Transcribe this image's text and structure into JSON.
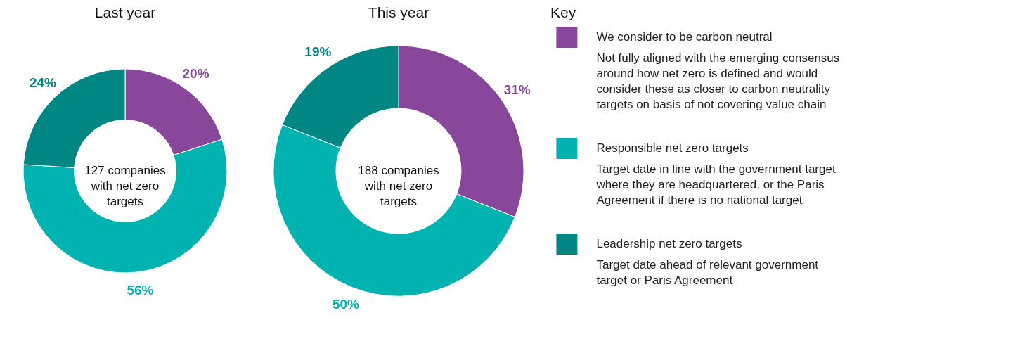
{
  "chart_data": [
    {
      "type": "donut",
      "title": "Last year",
      "categories": [
        "We consider to be carbon neutral",
        "Responsible net zero targets",
        "Leadership net zero targets"
      ],
      "values": [
        20,
        56,
        24
      ],
      "value_labels": [
        "20%",
        "56%",
        "24%"
      ],
      "colors": [
        "#88479b",
        "#00b3b0",
        "#008784"
      ],
      "annotations": [
        "127 companies with net zero targets",
        "Not fully aligned with the emerging consensus around how net zero is defined and would consider these as closer to carbon neutrality targets on basis of not covering value chain",
        "Target date in line with the government target where they are headquartered, or the Paris Agreement if there is no national target",
        "Target date ahead of relevant government target or Paris Agreement"
      ],
      "legend": "right",
      "legend_title": "Key"
    },
    {
      "type": "donut",
      "title": "This year",
      "categories": [
        null,
        null,
        null
      ],
      "values": [
        31,
        50,
        19
      ],
      "value_labels": [
        "31%",
        "50%",
        "19%"
      ],
      "colors": [
        "#88479b",
        "#00b3b0",
        "#008784"
      ],
      "annotations": [
        "188 companies with net zero targets"
      ],
      "legend": false
    }
  ]
}
